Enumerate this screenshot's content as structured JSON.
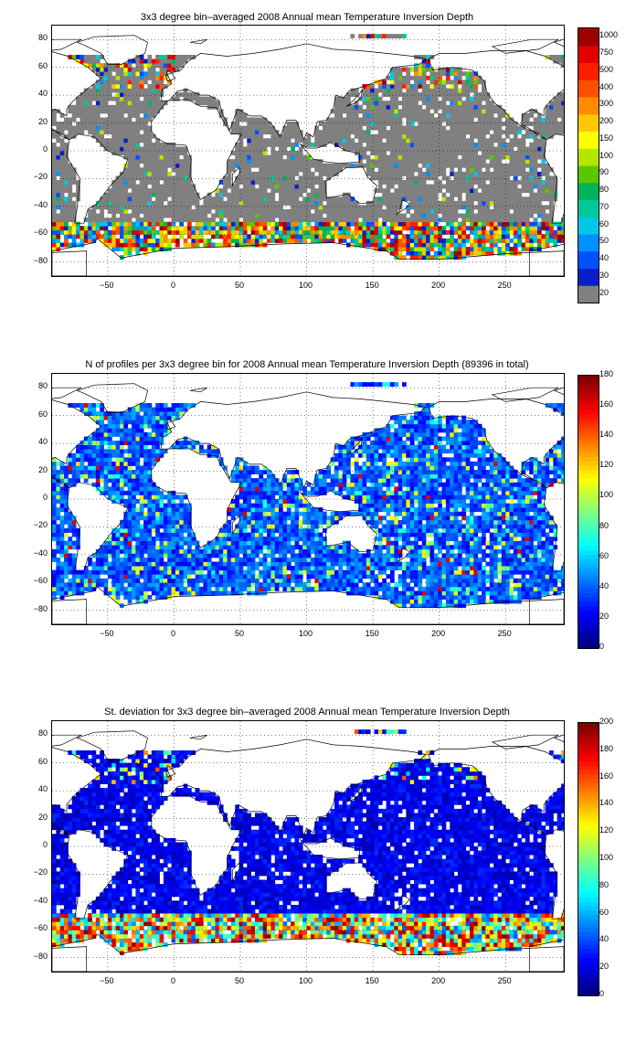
{
  "panels": [
    {
      "title": "3x3 degree bin–averaged 2008 Annual mean Temperature Inversion Depth",
      "mode": "depth",
      "colorbar_labels": [
        "1000",
        "750",
        "500",
        "400",
        "300",
        "200",
        "150",
        "100",
        "90",
        "80",
        "70",
        "60",
        "50",
        "40",
        "30",
        "20"
      ],
      "seed": 11
    },
    {
      "title": "N of profiles per 3x3 degree bin for 2008 Annual mean Temperature Inversion Depth  (89396 in total)",
      "mode": "count",
      "colorbar_labels": [
        "180",
        "160",
        "140",
        "120",
        "100",
        "80",
        "60",
        "40",
        "20",
        "0"
      ],
      "seed": 29
    },
    {
      "title": "St. deviation for 3x3 degree bin–averaged 2008 Annual mean Temperature Inversion Depth",
      "mode": "std",
      "colorbar_labels": [
        "200",
        "180",
        "160",
        "140",
        "120",
        "100",
        "80",
        "60",
        "40",
        "20",
        "0"
      ],
      "seed": 47
    }
  ],
  "axes": {
    "y_ticks": [
      "80",
      "60",
      "40",
      "20",
      "0",
      "−20",
      "−40",
      "−60",
      "−80"
    ],
    "x_ticks": [
      "−50",
      "0",
      "50",
      "100",
      "150",
      "200",
      "250"
    ],
    "lon_range": [
      -92,
      294
    ],
    "lat_range": [
      -90,
      90
    ],
    "grid": true
  },
  "chart_data": [
    {
      "type": "heatmap",
      "title": "3x3 degree bin–averaged 2008 Annual mean Temperature Inversion Depth",
      "xlim": [
        -92,
        294
      ],
      "ylim": [
        -90,
        90
      ],
      "colorbar": [
        "20",
        "30",
        "40",
        "50",
        "60",
        "70",
        "80",
        "90",
        "100",
        "150",
        "200",
        "300",
        "400",
        "500",
        "750",
        "1000"
      ]
    },
    {
      "type": "heatmap",
      "title": "N of profiles per 3x3 degree bin for 2008 Annual mean Temperature Inversion Depth  (89396 in total)",
      "xlim": [
        -92,
        294
      ],
      "ylim": [
        -90,
        90
      ],
      "colorbar": [
        0,
        180
      ]
    },
    {
      "type": "heatmap",
      "title": "St. deviation for 3x3 degree bin–averaged 2008 Annual mean Temperature Inversion Depth",
      "xlim": [
        -92,
        294
      ],
      "ylim": [
        -90,
        90
      ],
      "colorbar": [
        0,
        200
      ]
    }
  ]
}
